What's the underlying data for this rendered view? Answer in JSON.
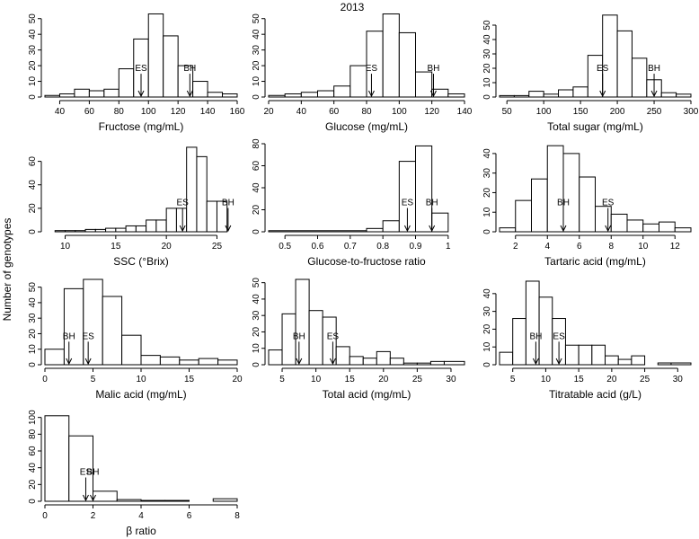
{
  "figure": {
    "title": "2013",
    "ylabel": "Number of genotypes"
  },
  "chart_data": [
    {
      "type": "bar",
      "title": "",
      "xlabel": "Fructose (mg/mL)",
      "ylabel": "Number of genotypes",
      "xlim": [
        30,
        160
      ],
      "ylim": [
        0,
        55
      ],
      "xticks": [
        40,
        60,
        80,
        100,
        120,
        140,
        160
      ],
      "yticks": [
        0,
        10,
        20,
        30,
        40,
        50
      ],
      "bin_edges": [
        30,
        40,
        50,
        60,
        70,
        80,
        90,
        100,
        110,
        120,
        130,
        140,
        150,
        160
      ],
      "values": [
        1,
        2,
        5,
        4,
        5,
        18,
        37,
        53,
        39,
        20,
        10,
        3,
        2
      ],
      "markers": [
        {
          "label": "ES",
          "x": 95
        },
        {
          "label": "BH",
          "x": 128
        }
      ]
    },
    {
      "type": "bar",
      "title": "2013",
      "xlabel": "Glucose (mg/mL)",
      "ylabel": "Number of genotypes",
      "xlim": [
        20,
        140
      ],
      "ylim": [
        0,
        55
      ],
      "xticks": [
        20,
        40,
        60,
        80,
        100,
        120,
        140
      ],
      "yticks": [
        0,
        10,
        20,
        30,
        40,
        50
      ],
      "bin_edges": [
        20,
        30,
        40,
        50,
        60,
        70,
        80,
        90,
        100,
        110,
        120,
        130,
        140
      ],
      "values": [
        1,
        2,
        3,
        4,
        7,
        20,
        42,
        53,
        41,
        16,
        5,
        2
      ],
      "markers": [
        {
          "label": "ES",
          "x": 83
        },
        {
          "label": "BH",
          "x": 121
        }
      ]
    },
    {
      "type": "bar",
      "title": "",
      "xlabel": "Total sugar (mg/mL)",
      "ylabel": "Number of genotypes",
      "xlim": [
        40,
        300
      ],
      "ylim": [
        0,
        60
      ],
      "xticks": [
        50,
        100,
        150,
        200,
        250,
        300
      ],
      "yticks": [
        0,
        10,
        20,
        30,
        40,
        50
      ],
      "bin_edges": [
        40,
        60,
        80,
        100,
        120,
        140,
        160,
        180,
        200,
        220,
        240,
        260,
        280,
        300
      ],
      "values": [
        1,
        1,
        4,
        2,
        5,
        7,
        29,
        57,
        46,
        27,
        12,
        3,
        2
      ],
      "markers": [
        {
          "label": "ES",
          "x": 180
        },
        {
          "label": "BH",
          "x": 250
        }
      ]
    },
    {
      "type": "bar",
      "title": "",
      "xlabel": "SSC (°Brix)",
      "ylabel": "Number of genotypes",
      "xlim": [
        8,
        27
      ],
      "ylim": [
        0,
        75
      ],
      "xticks": [
        10,
        15,
        20,
        25
      ],
      "yticks": [
        0,
        20,
        40,
        60
      ],
      "bin_edges": [
        8,
        9,
        10,
        11,
        12,
        13,
        14,
        15,
        16,
        17,
        18,
        19,
        20,
        21,
        22,
        23,
        24,
        25,
        26,
        27
      ],
      "values": [
        0,
        1,
        1,
        1,
        2,
        2,
        3,
        3,
        5,
        5,
        10,
        10,
        20,
        20,
        72,
        64,
        26,
        26,
        0
      ],
      "markers": [
        {
          "label": "ES",
          "x": 21.6
        },
        {
          "label": "BH",
          "x": 26.1
        }
      ]
    },
    {
      "type": "bar",
      "title": "",
      "xlabel": "Glucose-to-fructose ratio",
      "ylabel": "Number of genotypes",
      "xlim": [
        0.45,
        1.05
      ],
      "ylim": [
        0,
        80
      ],
      "xticks": [
        0.5,
        0.6,
        0.7,
        0.8,
        0.9,
        1.0
      ],
      "yticks": [
        0,
        20,
        40,
        60,
        80
      ],
      "bin_edges": [
        0.45,
        0.75,
        0.8,
        0.85,
        0.9,
        0.95,
        1.0,
        1.05
      ],
      "values": [
        1,
        3,
        10,
        64,
        78,
        17,
        0
      ],
      "markers": [
        {
          "label": "ES",
          "x": 0.875
        },
        {
          "label": "BH",
          "x": 0.95
        }
      ]
    },
    {
      "type": "bar",
      "title": "",
      "xlabel": "Tartaric acid (mg/mL)",
      "ylabel": "Number of genotypes",
      "xlim": [
        1,
        13
      ],
      "ylim": [
        0,
        45
      ],
      "xticks": [
        2,
        4,
        6,
        8,
        10,
        12
      ],
      "yticks": [
        0,
        10,
        20,
        30,
        40
      ],
      "bin_edges": [
        1,
        2,
        3,
        4,
        5,
        6,
        7,
        8,
        9,
        10,
        11,
        12,
        13
      ],
      "values": [
        2,
        16,
        27,
        44,
        40,
        28,
        13,
        9,
        6,
        4,
        5,
        2
      ],
      "markers": [
        {
          "label": "BH",
          "x": 5.0
        },
        {
          "label": "ES",
          "x": 7.8
        }
      ]
    },
    {
      "type": "bar",
      "title": "",
      "xlabel": "Malic acid (mg/mL)",
      "ylabel": "Number of genotypes",
      "xlim": [
        0,
        20
      ],
      "ylim": [
        0,
        55
      ],
      "xticks": [
        0,
        5,
        10,
        15,
        20
      ],
      "yticks": [
        0,
        10,
        20,
        30,
        40,
        50
      ],
      "bin_edges": [
        0,
        2,
        4,
        6,
        8,
        10,
        12,
        14,
        16,
        18,
        20
      ],
      "values": [
        10,
        49,
        55,
        44,
        19,
        6,
        5,
        3,
        4,
        3
      ],
      "markers": [
        {
          "label": "BH",
          "x": 2.5
        },
        {
          "label": "ES",
          "x": 4.5
        }
      ]
    },
    {
      "type": "bar",
      "title": "",
      "xlabel": "Total acid (mg/mL)",
      "ylabel": "Number of genotypes",
      "xlim": [
        3,
        32
      ],
      "ylim": [
        0,
        52
      ],
      "xticks": [
        5,
        10,
        15,
        20,
        25,
        30
      ],
      "yticks": [
        0,
        10,
        20,
        30,
        40,
        50
      ],
      "bin_edges": [
        3,
        5,
        7,
        9,
        11,
        13,
        15,
        17,
        19,
        21,
        23,
        25,
        27,
        29,
        32
      ],
      "values": [
        9,
        31,
        52,
        33,
        29,
        11,
        5,
        4,
        8,
        4,
        1,
        1,
        2,
        2
      ],
      "markers": [
        {
          "label": "BH",
          "x": 7.5
        },
        {
          "label": "ES",
          "x": 12.5
        }
      ]
    },
    {
      "type": "bar",
      "title": "",
      "xlabel": "Titratable acid (g/L)",
      "ylabel": "Number of genotypes",
      "xlim": [
        3,
        32
      ],
      "ylim": [
        0,
        48
      ],
      "xticks": [
        5,
        10,
        15,
        20,
        25,
        30
      ],
      "yticks": [
        0,
        10,
        20,
        30,
        40
      ],
      "bin_edges": [
        3,
        5,
        7,
        9,
        11,
        13,
        15,
        17,
        19,
        21,
        23,
        25,
        27,
        29,
        32
      ],
      "values": [
        7,
        26,
        47,
        38,
        26,
        11,
        11,
        11,
        5,
        3,
        5,
        0,
        1,
        1
      ],
      "markers": [
        {
          "label": "BH",
          "x": 8.5
        },
        {
          "label": "ES",
          "x": 12.0
        }
      ]
    },
    {
      "type": "bar",
      "title": "",
      "xlabel": "β ratio",
      "ylabel": "Number of genotypes",
      "xlim": [
        0,
        8
      ],
      "ylim": [
        0,
        105
      ],
      "xticks": [
        0,
        2,
        4,
        6,
        8
      ],
      "yticks": [
        0,
        20,
        40,
        60,
        80,
        100
      ],
      "bin_edges": [
        0,
        1,
        2,
        3,
        4,
        5,
        6,
        7,
        8
      ],
      "values": [
        102,
        78,
        12,
        2,
        1,
        1,
        0,
        3
      ],
      "markers": [
        {
          "label": "ES",
          "x": 1.7
        },
        {
          "label": "BH",
          "x": 2.0
        }
      ]
    }
  ]
}
